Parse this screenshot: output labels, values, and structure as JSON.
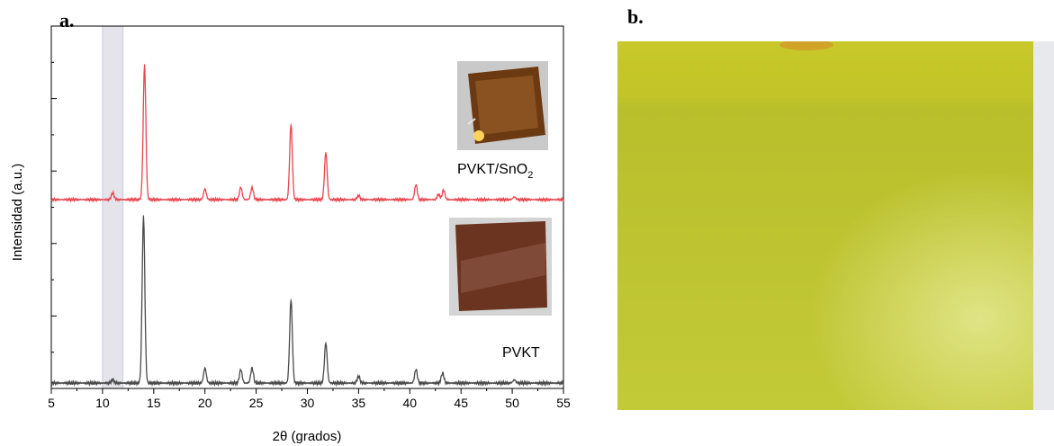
{
  "panels": {
    "a_label": "a.",
    "b_label": "b."
  },
  "chart_data": {
    "type": "line",
    "xlabel": "2θ (grados)",
    "ylabel": "Intensidad (a.u.)",
    "xlim": [
      5,
      55
    ],
    "x_ticks": [
      5,
      10,
      15,
      20,
      25,
      30,
      35,
      40,
      45,
      50,
      55
    ],
    "y_ticks_shown": false,
    "highlight_band": {
      "x_from": 10,
      "x_to": 12,
      "color": "#c9cde6"
    },
    "series": [
      {
        "name": "PVKT/SnO",
        "name_subscript": "2",
        "color": "#e8464f",
        "baseline": 0.0,
        "peaks": [
          {
            "x": 11.0,
            "y": 0.05
          },
          {
            "x": 14.1,
            "y": 1.0
          },
          {
            "x": 20.0,
            "y": 0.08
          },
          {
            "x": 23.5,
            "y": 0.09
          },
          {
            "x": 24.6,
            "y": 0.09
          },
          {
            "x": 28.4,
            "y": 0.56
          },
          {
            "x": 31.8,
            "y": 0.35
          },
          {
            "x": 35.0,
            "y": 0.03
          },
          {
            "x": 40.6,
            "y": 0.11
          },
          {
            "x": 42.8,
            "y": 0.04
          },
          {
            "x": 43.3,
            "y": 0.07
          },
          {
            "x": 50.2,
            "y": 0.02
          }
        ]
      },
      {
        "name": "PVKT",
        "color": "#4a4a4a",
        "baseline": 0.0,
        "peaks": [
          {
            "x": 11.0,
            "y": 0.02
          },
          {
            "x": 14.0,
            "y": 1.0
          },
          {
            "x": 20.0,
            "y": 0.09
          },
          {
            "x": 23.5,
            "y": 0.08
          },
          {
            "x": 24.6,
            "y": 0.09
          },
          {
            "x": 28.4,
            "y": 0.5
          },
          {
            "x": 31.8,
            "y": 0.24
          },
          {
            "x": 35.0,
            "y": 0.04
          },
          {
            "x": 40.6,
            "y": 0.08
          },
          {
            "x": 43.2,
            "y": 0.06
          },
          {
            "x": 50.2,
            "y": 0.02
          }
        ]
      }
    ]
  },
  "photos": {
    "inset_top": "photo-pvkt-sno2-sample",
    "inset_bottom": "photo-pvkt-sample",
    "panel_b": "photo-yellow-film"
  }
}
